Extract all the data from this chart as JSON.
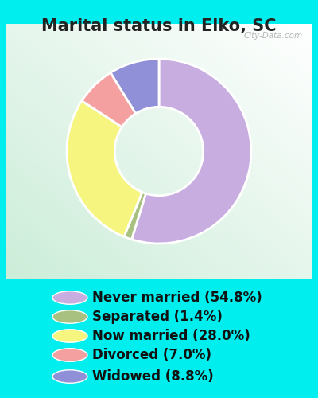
{
  "title": "Marital status in Elko, SC",
  "slices": [
    54.8,
    1.4,
    28.0,
    7.0,
    8.8
  ],
  "labels": [
    "Never married (54.8%)",
    "Separated (1.4%)",
    "Now married (28.0%)",
    "Divorced (7.0%)",
    "Widowed (8.8%)"
  ],
  "colors": [
    "#c8aee0",
    "#a8c080",
    "#f5f580",
    "#f4a0a0",
    "#9090d8"
  ],
  "bg_color": "#00eeee",
  "chart_bg": "#ddf0e8",
  "title_fontsize": 15,
  "legend_fontsize": 12,
  "watermark": "City-Data.com",
  "title_color": "#222222"
}
